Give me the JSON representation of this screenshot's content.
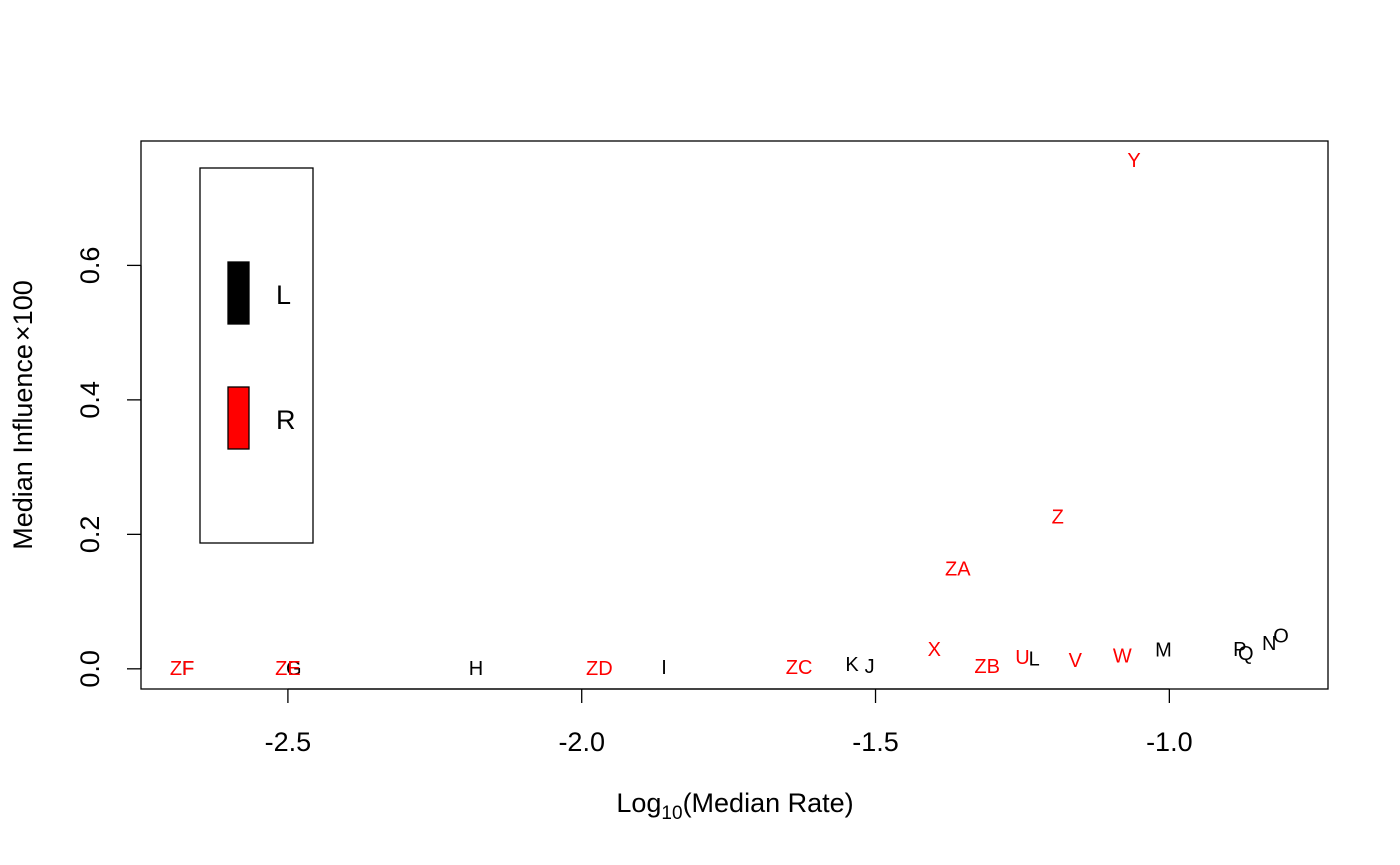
{
  "chart_data": {
    "type": "scatter",
    "title": "",
    "xlabel": {
      "base": "Log",
      "subscript": "10",
      "rest": "(Median Rate)"
    },
    "ylabel": {
      "text": "Median Influence",
      "times": "×",
      "factor": "100"
    },
    "xlim": [
      -2.75,
      -0.73
    ],
    "ylim": [
      -0.03,
      0.785
    ],
    "xticks": [
      {
        "value": -2.5,
        "label": "-2.5"
      },
      {
        "value": -2.0,
        "label": "-2.0"
      },
      {
        "value": -1.5,
        "label": "-1.5"
      },
      {
        "value": -1.0,
        "label": "-1.0"
      }
    ],
    "yticks": [
      {
        "value": 0.0,
        "label": "0.0"
      },
      {
        "value": 0.2,
        "label": "0.2"
      },
      {
        "value": 0.4,
        "label": "0.4"
      },
      {
        "value": 0.6,
        "label": "0.6"
      }
    ],
    "grid": false,
    "legend": {
      "placement": "top-left",
      "entries": [
        {
          "label": "L",
          "color": "#000000"
        },
        {
          "label": "R",
          "color": "#ff0000"
        }
      ]
    },
    "series": [
      {
        "name": "L",
        "color": "#000000",
        "points": [
          {
            "label": "F",
            "x": -2.67,
            "y": 0.0
          },
          {
            "label": "G",
            "x": -2.49,
            "y": 0.0
          },
          {
            "label": "H",
            "x": -2.18,
            "y": 0.0
          },
          {
            "label": "I",
            "x": -1.86,
            "y": 0.001
          },
          {
            "label": "J",
            "x": -1.51,
            "y": 0.003
          },
          {
            "label": "K",
            "x": -1.54,
            "y": 0.006
          },
          {
            "label": "L",
            "x": -1.23,
            "y": 0.014
          },
          {
            "label": "M",
            "x": -1.01,
            "y": 0.027
          },
          {
            "label": "N",
            "x": -0.83,
            "y": 0.037
          },
          {
            "label": "O",
            "x": -0.81,
            "y": 0.048
          },
          {
            "label": "P",
            "x": -0.88,
            "y": 0.028
          },
          {
            "label": "Q",
            "x": -0.87,
            "y": 0.022
          }
        ]
      },
      {
        "name": "R",
        "color": "#ff0000",
        "points": [
          {
            "label": "ZF",
            "x": -2.68,
            "y": 0.0
          },
          {
            "label": "ZE",
            "x": -2.5,
            "y": 0.0
          },
          {
            "label": "ZD",
            "x": -1.97,
            "y": 0.0
          },
          {
            "label": "ZC",
            "x": -1.63,
            "y": 0.001
          },
          {
            "label": "X",
            "x": -1.4,
            "y": 0.028
          },
          {
            "label": "ZB",
            "x": -1.31,
            "y": 0.003
          },
          {
            "label": "U",
            "x": -1.25,
            "y": 0.016
          },
          {
            "label": "V",
            "x": -1.16,
            "y": 0.012
          },
          {
            "label": "W",
            "x": -1.08,
            "y": 0.018
          },
          {
            "label": "ZA",
            "x": -1.36,
            "y": 0.148
          },
          {
            "label": "Z",
            "x": -1.19,
            "y": 0.225
          },
          {
            "label": "Y",
            "x": -1.06,
            "y": 0.755
          }
        ]
      }
    ]
  }
}
